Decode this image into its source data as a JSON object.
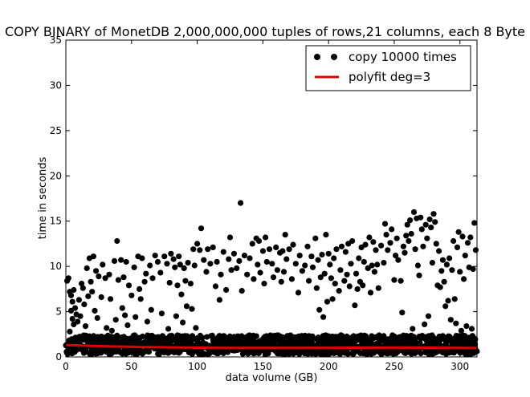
{
  "chart_data": {
    "type": "scatter",
    "title": "COPY BINARY of MonetDB 2,000,000,000 tuples of rows,21 columns, each 8 Byte",
    "xlabel": "data volume (GB)",
    "ylabel": "time in seconds",
    "xlim": [
      0,
      313
    ],
    "ylim": [
      0,
      35
    ],
    "xticks": [
      0,
      50,
      100,
      150,
      200,
      250,
      300
    ],
    "yticks": [
      0,
      5,
      10,
      15,
      20,
      25,
      30,
      35
    ],
    "grid": false,
    "legend_position": "top-right",
    "colors": {
      "points": "#000000",
      "fit": "#dd0000"
    },
    "series": [
      {
        "name": "copy 10000 times",
        "kind": "scatter",
        "band_points_note_free": true,
        "points": [
          [
            1,
            8.4
          ],
          [
            2,
            8.7
          ],
          [
            3,
            7.2
          ],
          [
            4,
            6.8
          ],
          [
            4,
            5.1
          ],
          [
            5,
            4.2
          ],
          [
            6,
            3.6
          ],
          [
            3,
            2.8
          ],
          [
            5,
            6.1
          ],
          [
            7,
            5.4
          ],
          [
            8,
            4.7
          ],
          [
            6,
            7.4
          ],
          [
            9,
            3.9
          ],
          [
            10,
            6.3
          ],
          [
            11,
            4.5
          ],
          [
            12,
            8.1
          ],
          [
            13,
            7.6
          ],
          [
            14,
            5.8
          ],
          [
            15,
            3.4
          ],
          [
            16,
            9.8
          ],
          [
            17,
            6.7
          ],
          [
            18,
            10.9
          ],
          [
            19,
            8.3
          ],
          [
            20,
            7.2
          ],
          [
            21,
            11.1
          ],
          [
            22,
            5.1
          ],
          [
            23,
            9.5
          ],
          [
            24,
            4.3
          ],
          [
            25,
            8.9
          ],
          [
            27,
            6.6
          ],
          [
            28,
            10.2
          ],
          [
            30,
            8.7
          ],
          [
            31,
            3.2
          ],
          [
            33,
            9.1
          ],
          [
            34,
            6.4
          ],
          [
            35,
            2.9
          ],
          [
            37,
            10.6
          ],
          [
            38,
            4.1
          ],
          [
            39,
            12.8
          ],
          [
            40,
            8.5
          ],
          [
            42,
            10.7
          ],
          [
            43,
            5.4
          ],
          [
            44,
            8.8
          ],
          [
            45,
            4.6
          ],
          [
            46,
            10.5
          ],
          [
            47,
            3.5
          ],
          [
            48,
            7.9
          ],
          [
            50,
            6.8
          ],
          [
            52,
            9.9
          ],
          [
            53,
            4.4
          ],
          [
            55,
            11.1
          ],
          [
            56,
            7.5
          ],
          [
            57,
            6.4
          ],
          [
            58,
            10.9
          ],
          [
            60,
            8.3
          ],
          [
            61,
            9.2
          ],
          [
            62,
            3.9
          ],
          [
            64,
            10.1
          ],
          [
            65,
            5.2
          ],
          [
            66,
            8.7
          ],
          [
            68,
            11.2
          ],
          [
            70,
            10.5
          ],
          [
            72,
            9.3
          ],
          [
            73,
            4.8
          ],
          [
            75,
            11.1
          ],
          [
            77,
            10.3
          ],
          [
            78,
            3.1
          ],
          [
            79,
            8.2
          ],
          [
            80,
            11.4
          ],
          [
            82,
            10.8
          ],
          [
            83,
            9.9
          ],
          [
            84,
            4.5
          ],
          [
            85,
            7.9
          ],
          [
            86,
            11.1
          ],
          [
            87,
            10.2
          ],
          [
            88,
            6.9
          ],
          [
            89,
            3.8
          ],
          [
            90,
            9.8
          ],
          [
            91,
            8.4
          ],
          [
            92,
            5.6
          ],
          [
            93,
            10.4
          ],
          [
            95,
            8.1
          ],
          [
            96,
            5.3
          ],
          [
            97,
            11.9
          ],
          [
            98,
            10.1
          ],
          [
            99,
            3.2
          ],
          [
            100,
            12.5
          ],
          [
            102,
            11.8
          ],
          [
            103,
            14.2
          ],
          [
            105,
            10.7
          ],
          [
            107,
            9.4
          ],
          [
            108,
            11.9
          ],
          [
            110,
            10.3
          ],
          [
            112,
            12.1
          ],
          [
            114,
            7.8
          ],
          [
            115,
            10.5
          ],
          [
            117,
            6.3
          ],
          [
            118,
            9.1
          ],
          [
            120,
            11.6
          ],
          [
            122,
            7.4
          ],
          [
            124,
            10.8
          ],
          [
            125,
            13.2
          ],
          [
            126,
            9.6
          ],
          [
            128,
            11.4
          ],
          [
            130,
            9.8
          ],
          [
            132,
            10.6
          ],
          [
            133,
            17.0
          ],
          [
            134,
            7.3
          ],
          [
            136,
            11.2
          ],
          [
            138,
            9.1
          ],
          [
            140,
            10.9
          ],
          [
            142,
            12.5
          ],
          [
            143,
            8.6
          ],
          [
            145,
            13.1
          ],
          [
            146,
            10.2
          ],
          [
            147,
            12.8
          ],
          [
            148,
            9.3
          ],
          [
            150,
            11.7
          ],
          [
            151,
            8.1
          ],
          [
            152,
            13.2
          ],
          [
            153,
            10.5
          ],
          [
            155,
            11.9
          ],
          [
            157,
            10.3
          ],
          [
            158,
            8.8
          ],
          [
            160,
            12.1
          ],
          [
            161,
            9.6
          ],
          [
            163,
            11.5
          ],
          [
            164,
            8.3
          ],
          [
            165,
            11.7
          ],
          [
            166,
            9.4
          ],
          [
            167,
            13.5
          ],
          [
            168,
            10.8
          ],
          [
            170,
            11.9
          ],
          [
            172,
            8.6
          ],
          [
            173,
            12.4
          ],
          [
            175,
            10.3
          ],
          [
            177,
            7.1
          ],
          [
            178,
            11.2
          ],
          [
            180,
            9.5
          ],
          [
            182,
            10.1
          ],
          [
            184,
            12.2
          ],
          [
            185,
            8.4
          ],
          [
            187,
            11.1
          ],
          [
            188,
            9.9
          ],
          [
            190,
            13.1
          ],
          [
            191,
            7.6
          ],
          [
            192,
            10.7
          ],
          [
            193,
            5.2
          ],
          [
            194,
            8.8
          ],
          [
            195,
            11.3
          ],
          [
            196,
            4.4
          ],
          [
            197,
            9.2
          ],
          [
            198,
            13.5
          ],
          [
            199,
            6.1
          ],
          [
            200,
            11.4
          ],
          [
            201,
            10.2
          ],
          [
            202,
            8.7
          ],
          [
            203,
            6.4
          ],
          [
            204,
            10.9
          ],
          [
            205,
            8.1
          ],
          [
            206,
            11.9
          ],
          [
            208,
            7.3
          ],
          [
            209,
            9.6
          ],
          [
            210,
            12.2
          ],
          [
            212,
            8.4
          ],
          [
            213,
            11.6
          ],
          [
            214,
            9.1
          ],
          [
            215,
            12.5
          ],
          [
            216,
            7.8
          ],
          [
            217,
            10.3
          ],
          [
            218,
            12.8
          ],
          [
            220,
            5.7
          ],
          [
            221,
            9.2
          ],
          [
            222,
            7.5
          ],
          [
            223,
            10.9
          ],
          [
            224,
            8.3
          ],
          [
            225,
            12.1
          ],
          [
            226,
            7.9
          ],
          [
            227,
            10.5
          ],
          [
            228,
            12.4
          ],
          [
            230,
            9.8
          ],
          [
            231,
            13.2
          ],
          [
            232,
            7.1
          ],
          [
            233,
            10.1
          ],
          [
            234,
            12.7
          ],
          [
            235,
            9.4
          ],
          [
            236,
            11.8
          ],
          [
            237,
            10.2
          ],
          [
            238,
            7.6
          ],
          [
            240,
            12.3
          ],
          [
            242,
            10.4
          ],
          [
            243,
            14.7
          ],
          [
            244,
            13.5
          ],
          [
            245,
            11.8
          ],
          [
            247,
            12.6
          ],
          [
            248,
            14.1
          ],
          [
            250,
            8.5
          ],
          [
            251,
            11.2
          ],
          [
            252,
            13.1
          ],
          [
            253,
            10.7
          ],
          [
            255,
            8.4
          ],
          [
            256,
            4.9
          ],
          [
            257,
            12.2
          ],
          [
            258,
            11.5
          ],
          [
            259,
            13.4
          ],
          [
            260,
            14.6
          ],
          [
            261,
            12.8
          ],
          [
            262,
            15.1
          ],
          [
            263,
            13.6
          ],
          [
            264,
            3.1
          ],
          [
            265,
            16.0
          ],
          [
            266,
            11.9
          ],
          [
            267,
            15.3
          ],
          [
            268,
            10.1
          ],
          [
            269,
            9.0
          ],
          [
            270,
            15.4
          ],
          [
            271,
            14.1
          ],
          [
            272,
            12.2
          ],
          [
            273,
            3.6
          ],
          [
            274,
            14.6
          ],
          [
            275,
            13.1
          ],
          [
            276,
            4.5
          ],
          [
            277,
            15.2
          ],
          [
            278,
            14.3
          ],
          [
            279,
            10.4
          ],
          [
            280,
            15.8
          ],
          [
            281,
            14.9
          ],
          [
            282,
            12.5
          ],
          [
            283,
            7.9
          ],
          [
            284,
            11.7
          ],
          [
            285,
            7.7
          ],
          [
            286,
            9.5
          ],
          [
            287,
            10.7
          ],
          [
            288,
            8.3
          ],
          [
            289,
            5.6
          ],
          [
            290,
            10.2
          ],
          [
            291,
            6.2
          ],
          [
            292,
            10.9
          ],
          [
            293,
            4.1
          ],
          [
            294,
            9.6
          ],
          [
            295,
            12.8
          ],
          [
            296,
            6.4
          ],
          [
            297,
            3.7
          ],
          [
            298,
            12.1
          ],
          [
            299,
            13.8
          ],
          [
            300,
            9.4
          ],
          [
            301,
            2.9
          ],
          [
            302,
            13.3
          ],
          [
            303,
            8.6
          ],
          [
            304,
            11.2
          ],
          [
            305,
            3.4
          ],
          [
            306,
            12.6
          ],
          [
            307,
            9.9
          ],
          [
            308,
            13.2
          ],
          [
            309,
            3.1
          ],
          [
            310,
            9.7
          ],
          [
            311,
            14.8
          ],
          [
            312,
            11.8
          ]
        ],
        "band": {
          "x_min": 0,
          "x_max": 313,
          "y_min": 0.3,
          "y_max": 2.4
        }
      },
      {
        "name": "polyfit deg=3",
        "kind": "line",
        "x": [
          0,
          20,
          40,
          60,
          80,
          100,
          120,
          140,
          160,
          180,
          200,
          220,
          240,
          260,
          280,
          300,
          313
        ],
        "y": [
          1.3,
          1.22,
          1.15,
          1.09,
          1.05,
          1.02,
          1.0,
          0.99,
          0.99,
          1.0,
          1.01,
          1.02,
          1.03,
          1.03,
          1.02,
          1.0,
          0.98
        ]
      }
    ]
  }
}
